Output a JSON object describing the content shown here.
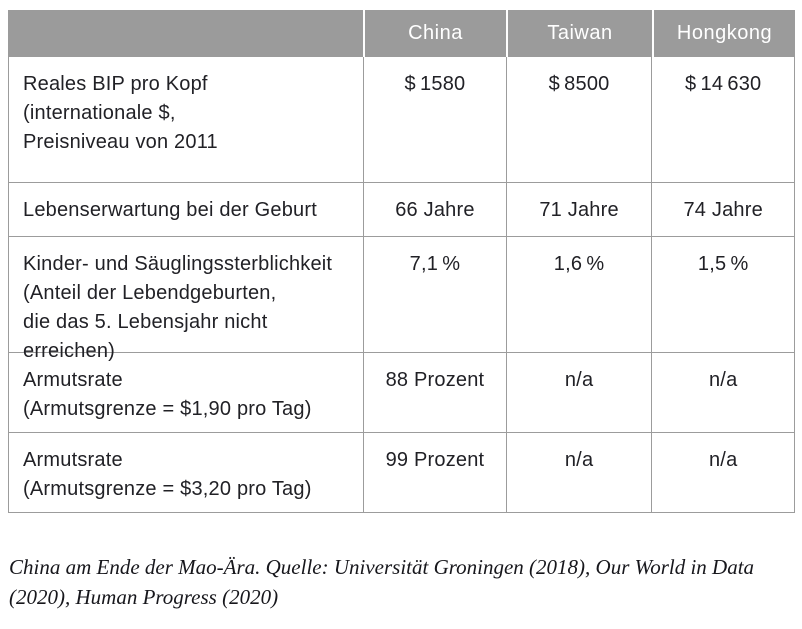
{
  "table": {
    "columns": [
      "",
      "China",
      "Taiwan",
      "Hongkong"
    ],
    "rows": [
      {
        "label_lines": [
          "Reales BIP pro Kopf",
          "(internationale $,",
          "Preisniveau von 2011"
        ],
        "values": [
          "$ 1580",
          "$ 8500",
          "$ 14 630"
        ]
      },
      {
        "label_lines": [
          "Lebenserwartung bei der Geburt"
        ],
        "values": [
          "66 Jahre",
          "71 Jahre",
          "74 Jahre"
        ]
      },
      {
        "label_lines": [
          "Kinder- und Säuglingssterblichkeit",
          "(Anteil der Lebendgeburten,",
          "die das 5. Lebensjahr nicht erreichen)"
        ],
        "values": [
          "7,1 %",
          "1,6 %",
          "1,5 %"
        ]
      },
      {
        "label_lines": [
          "Armutsrate",
          "(Armutsgrenze = $1,90 pro Tag)"
        ],
        "values": [
          "88 Prozent",
          "n/a",
          "n/a"
        ]
      },
      {
        "label_lines": [
          "Armutsrate",
          "(Armutsgrenze = $3,20 pro Tag)"
        ],
        "values": [
          "99 Prozent",
          "n/a",
          "n/a"
        ]
      }
    ]
  },
  "caption": {
    "lines": [
      "China am Ende der Mao-Ära. Quelle: Universität Groningen (2018), Our World in Data",
      "(2020), Human Progress (2020)"
    ]
  },
  "colors": {
    "header_bg": "#9b9b9b",
    "header_text": "#ffffff",
    "grid_border": "#9c9c9c",
    "body_text": "#212126",
    "caption_text": "#17171c",
    "background": "#ffffff"
  }
}
